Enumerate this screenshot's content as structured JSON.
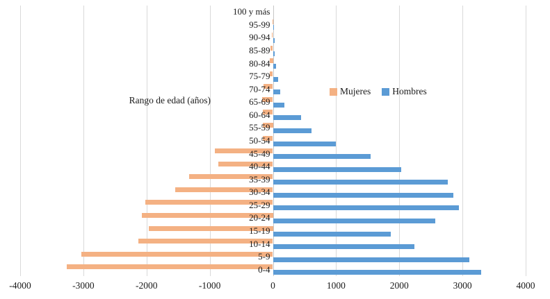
{
  "chart_data": {
    "type": "bar",
    "variant": "population-pyramid",
    "axis_title": "Rango de edad (años)",
    "categories_top_to_bottom": [
      "100 y más",
      "95-99",
      "90-94",
      "85-89",
      "80-84",
      "75-79",
      "70-74",
      "65-69",
      "60-64",
      "55-59",
      "50-54",
      "45-49",
      "40-44",
      "35-39",
      "30-34",
      "25-29",
      "20-24",
      "15-19",
      "10-14",
      "5-9",
      "0-4"
    ],
    "series": [
      {
        "name": "Mujeres",
        "side": "left",
        "color": "#F4B183",
        "values": [
          0,
          8,
          12,
          35,
          55,
          45,
          150,
          170,
          155,
          165,
          155,
          920,
          865,
          1330,
          1550,
          2015,
          2080,
          1970,
          2125,
          3030,
          3260
        ]
      },
      {
        "name": "Hombres",
        "side": "right",
        "color": "#5B9BD5",
        "values": [
          0,
          10,
          22,
          30,
          45,
          80,
          120,
          185,
          440,
          610,
          1000,
          1550,
          2030,
          2770,
          2850,
          2940,
          2570,
          1870,
          2240,
          3110,
          3300
        ]
      }
    ],
    "x_axis": {
      "min": -4000,
      "max": 4000,
      "tick_step": 1000,
      "tick_labels": [
        "-4000",
        "-3000",
        "-2000",
        "-1000",
        "0",
        "1000",
        "2000",
        "3000",
        "4000"
      ],
      "note": "left side shows magnitudes of Mujeres plotted as negative values"
    },
    "legend": {
      "items": [
        "Mujeres",
        "Hombres"
      ],
      "position": "center-right"
    },
    "grid": true,
    "gridline_color": "#D9D9D9",
    "text_color": "#1A1A1A",
    "background_color": "#FFFFFF"
  }
}
